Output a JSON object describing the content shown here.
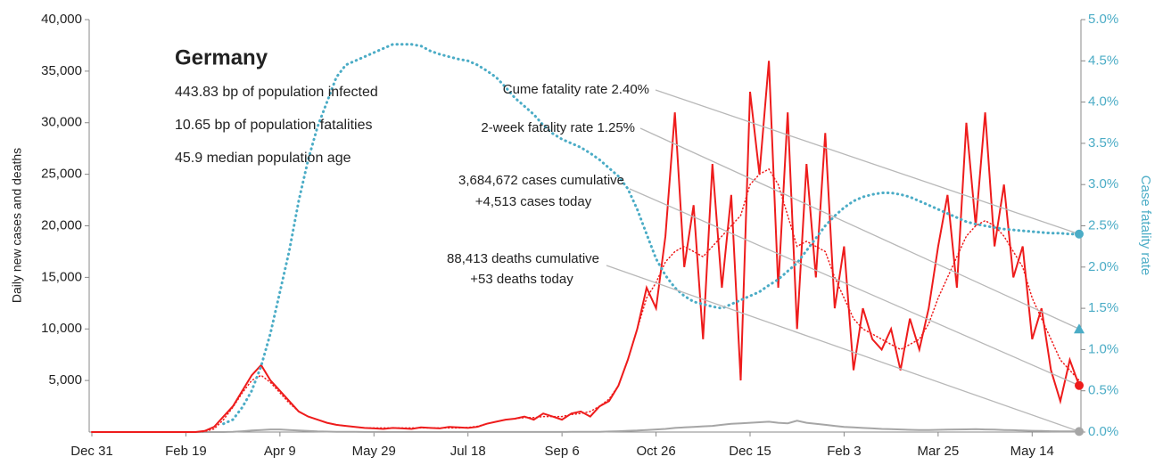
{
  "chart_data": {
    "type": "line",
    "ylabel": "Daily new cases and deaths",
    "y2label": "Case fatality rate",
    "y2color": "#4bacc6",
    "categories": [
      "Dec 31",
      null,
      null,
      null,
      null,
      null,
      null,
      null,
      null,
      null,
      "Feb 19",
      null,
      null,
      null,
      null,
      null,
      null,
      null,
      null,
      null,
      "Apr 9",
      null,
      null,
      null,
      null,
      null,
      null,
      null,
      null,
      null,
      "May 29",
      null,
      null,
      null,
      null,
      null,
      null,
      null,
      null,
      null,
      "Jul 18",
      null,
      null,
      null,
      null,
      null,
      null,
      null,
      null,
      null,
      "Sep 6",
      null,
      null,
      null,
      null,
      null,
      null,
      null,
      null,
      null,
      "Oct 26",
      null,
      null,
      null,
      null,
      null,
      null,
      null,
      null,
      null,
      "Dec 15",
      null,
      null,
      null,
      null,
      null,
      null,
      null,
      null,
      null,
      "Feb 3",
      null,
      null,
      null,
      null,
      null,
      null,
      null,
      null,
      null,
      "Mar 25",
      null,
      null,
      null,
      null,
      null,
      null,
      null,
      null,
      null,
      "May 14",
      null,
      null,
      null,
      null,
      null
    ],
    "ylim": [
      0,
      40000
    ],
    "yticks": [
      {
        "value": 5000,
        "label": "5,000"
      },
      {
        "value": 10000,
        "label": "10,000"
      },
      {
        "value": 15000,
        "label": "15,000"
      },
      {
        "value": 20000,
        "label": "20,000"
      },
      {
        "value": 25000,
        "label": "25,000"
      },
      {
        "value": 30000,
        "label": "30,000"
      },
      {
        "value": 35000,
        "label": "35,000"
      },
      {
        "value": 40000,
        "label": "40,000"
      }
    ],
    "y2lim": [
      0,
      5
    ],
    "y2ticks": [
      {
        "value": 0,
        "label": "0.0%"
      },
      {
        "value": 0.5,
        "label": "0.5%"
      },
      {
        "value": 1,
        "label": "1.0%"
      },
      {
        "value": 1.5,
        "label": "1.5%"
      },
      {
        "value": 2,
        "label": "2.0%"
      },
      {
        "value": 2.5,
        "label": "2.5%"
      },
      {
        "value": 3,
        "label": "3.0%"
      },
      {
        "value": 3.5,
        "label": "3.5%"
      },
      {
        "value": 4,
        "label": "4.0%"
      },
      {
        "value": 4.5,
        "label": "4.5%"
      },
      {
        "value": 5,
        "label": "5.0%"
      }
    ],
    "series": [
      {
        "color": "#ee1c1c",
        "style": "solid",
        "values": [
          0,
          0,
          0,
          0,
          0,
          0,
          0,
          0,
          0,
          0,
          0,
          0,
          100,
          500,
          1500,
          2500,
          4000,
          5500,
          6500,
          5000,
          4000,
          3000,
          2000,
          1500,
          1200,
          900,
          700,
          600,
          500,
          400,
          350,
          300,
          400,
          350,
          300,
          450,
          400,
          350,
          500,
          450,
          400,
          500,
          800,
          1000,
          1200,
          1300,
          1500,
          1200,
          1800,
          1500,
          1200,
          1800,
          2000,
          1500,
          2500,
          3000,
          4500,
          7000,
          10000,
          14000,
          12000,
          19000,
          31000,
          16000,
          22000,
          9000,
          26000,
          14000,
          23000,
          5000,
          33000,
          25000,
          36000,
          14000,
          31000,
          10000,
          26000,
          15000,
          29000,
          12000,
          18000,
          6000,
          12000,
          9000,
          8000,
          10000,
          6000,
          11000,
          8000,
          12000,
          18000,
          23000,
          14000,
          30000,
          20000,
          31000,
          18000,
          24000,
          15000,
          18000,
          9000,
          12000,
          6000,
          3000,
          7000,
          4513
        ]
      },
      {
        "color": "#ee1c1c",
        "style": "dotted",
        "values": [
          0,
          0,
          0,
          0,
          0,
          0,
          0,
          0,
          0,
          0,
          0,
          0,
          50,
          300,
          1200,
          2400,
          3800,
          5000,
          5500,
          4800,
          3800,
          2800,
          2000,
          1500,
          1200,
          900,
          700,
          600,
          500,
          400,
          400,
          400,
          400,
          400,
          400,
          400,
          400,
          400,
          400,
          400,
          450,
          550,
          800,
          1000,
          1200,
          1300,
          1400,
          1400,
          1500,
          1500,
          1500,
          1700,
          1800,
          2000,
          2500,
          3200,
          4500,
          7000,
          10000,
          13000,
          14500,
          16500,
          17500,
          18000,
          17500,
          17000,
          18000,
          19000,
          20000,
          21000,
          24000,
          25000,
          25500,
          24000,
          21000,
          18000,
          18500,
          18000,
          17500,
          15000,
          13000,
          11000,
          10000,
          9500,
          9000,
          8500,
          8000,
          8500,
          9000,
          10500,
          13000,
          15000,
          17000,
          19000,
          20000,
          20500,
          20000,
          19000,
          17500,
          16000,
          13000,
          11000,
          9000,
          7000,
          6000,
          5000
        ]
      },
      {
        "color": "#a6a6a6",
        "style": "solid",
        "values": [
          0,
          0,
          0,
          0,
          0,
          0,
          0,
          0,
          0,
          0,
          0,
          0,
          0,
          0,
          0,
          20,
          80,
          150,
          200,
          250,
          250,
          200,
          150,
          100,
          60,
          40,
          30,
          20,
          15,
          10,
          10,
          8,
          8,
          6,
          6,
          5,
          5,
          5,
          6,
          6,
          6,
          6,
          8,
          8,
          8,
          10,
          10,
          10,
          12,
          12,
          12,
          15,
          20,
          25,
          30,
          50,
          80,
          120,
          150,
          200,
          250,
          300,
          400,
          450,
          500,
          550,
          600,
          700,
          800,
          850,
          900,
          950,
          1000,
          900,
          850,
          1100,
          900,
          800,
          700,
          600,
          500,
          450,
          400,
          350,
          300,
          280,
          250,
          220,
          200,
          200,
          220,
          230,
          250,
          260,
          280,
          250,
          230,
          200,
          180,
          150,
          120,
          100,
          80,
          70,
          60,
          53
        ]
      },
      {
        "color": "#4bacc6",
        "style": "dotted",
        "axis": "y2",
        "values": [
          null,
          null,
          null,
          null,
          null,
          null,
          null,
          null,
          null,
          null,
          null,
          null,
          null,
          null,
          0.1,
          0.15,
          0.3,
          0.5,
          0.8,
          1.2,
          1.7,
          2.2,
          2.8,
          3.3,
          3.7,
          4.0,
          4.3,
          4.45,
          4.5,
          4.55,
          4.6,
          4.65,
          4.7,
          4.7,
          4.7,
          4.68,
          4.62,
          4.58,
          4.55,
          4.52,
          4.5,
          4.45,
          4.38,
          4.3,
          4.18,
          4.05,
          3.95,
          3.85,
          3.72,
          3.62,
          3.55,
          3.5,
          3.45,
          3.38,
          3.3,
          3.2,
          3.1,
          2.95,
          2.7,
          2.4,
          2.1,
          1.9,
          1.75,
          1.65,
          1.58,
          1.55,
          1.52,
          1.5,
          1.55,
          1.6,
          1.65,
          1.7,
          1.78,
          1.85,
          1.95,
          2.05,
          2.2,
          2.35,
          2.5,
          2.62,
          2.72,
          2.8,
          2.85,
          2.88,
          2.9,
          2.9,
          2.88,
          2.85,
          2.8,
          2.75,
          2.7,
          2.65,
          2.6,
          2.55,
          2.52,
          2.5,
          2.48,
          2.46,
          2.45,
          2.44,
          2.43,
          2.42,
          2.41,
          2.41,
          2.4,
          2.4
        ]
      }
    ],
    "info": {
      "title": "Germany",
      "lines": [
        "443.83 bp of population infected",
        "10.65 bp of population fatalities",
        "45.9 median population age"
      ]
    },
    "annotations": [
      {
        "text": [
          "Cume fatality rate 2.40%"
        ],
        "value": 2.4,
        "axis": "y2",
        "marker": "circle",
        "color": "#4bacc6"
      },
      {
        "text": [
          "2-week fatality rate 1.25%"
        ],
        "value": 1.25,
        "axis": "y2",
        "marker": "triangle",
        "color": "#4bacc6"
      },
      {
        "text": [
          "3,684,672 cases cumulative",
          "+4,513 cases today"
        ],
        "value": 4513,
        "axis": "y",
        "marker": "circle",
        "color": "#ee1c1c"
      },
      {
        "text": [
          "88,413 deaths cumulative",
          "+53 deaths today"
        ],
        "value": 53,
        "axis": "y",
        "marker": "circle",
        "color": "#a6a6a6"
      }
    ]
  }
}
